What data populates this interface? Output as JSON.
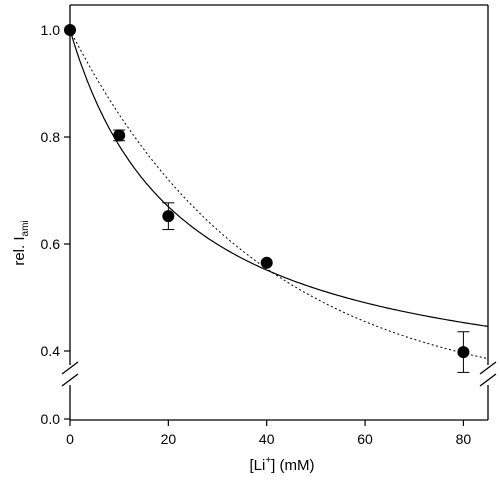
{
  "chart_data": {
    "type": "scatter",
    "xlabel": {
      "main": "[Li",
      "sup": "+",
      "rest": "] (mM)"
    },
    "ylabel": {
      "main": "rel. I",
      "sub": "ami"
    },
    "xlim": [
      0,
      85
    ],
    "ylim_upper": [
      0.34,
      1.0
    ],
    "ylim_lower": [
      0.0,
      0.0
    ],
    "axis_break": true,
    "x_ticks": [
      {
        "value": 0,
        "label": "0"
      },
      {
        "value": 20,
        "label": "20"
      },
      {
        "value": 40,
        "label": "40"
      },
      {
        "value": 60,
        "label": "60"
      },
      {
        "value": 80,
        "label": "80"
      }
    ],
    "y_ticks": [
      {
        "value": 1.0,
        "label": "1.0"
      },
      {
        "value": 0.8,
        "label": "0.8"
      },
      {
        "value": 0.6,
        "label": "0.6"
      },
      {
        "value": 0.4,
        "label": "0.4"
      },
      {
        "value": 0.0,
        "label": "0.0"
      }
    ],
    "series": [
      {
        "style": "markers-with-error-bars",
        "x": [
          0,
          10,
          20,
          40,
          80
        ],
        "y": [
          1.0,
          0.803,
          0.652,
          0.565,
          0.398
        ],
        "err": [
          0,
          0.01,
          0.025,
          0,
          0.038
        ]
      }
    ],
    "fits": [
      {
        "style": "solid",
        "model": "hyperbolic",
        "Kd": 22.4,
        "scale": [
          1.0,
          0.8,
          0.4
        ]
      },
      {
        "style": "dotted",
        "model": "exponential",
        "k": 0.026,
        "offset": 0.31
      }
    ]
  }
}
